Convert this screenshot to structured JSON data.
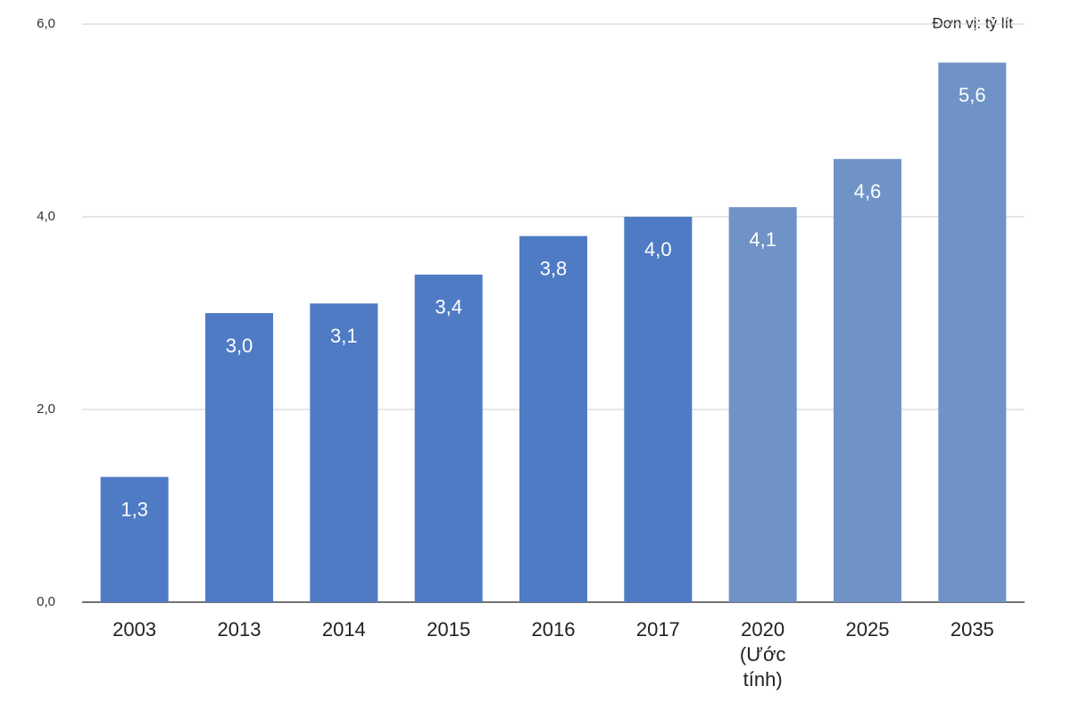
{
  "chart_data": {
    "type": "bar",
    "unit_label": "Đơn vị: tỷ lít",
    "categories": [
      "2003",
      "2013",
      "2014",
      "2015",
      "2016",
      "2017",
      "2020 (Ước tính)",
      "2025",
      "2035"
    ],
    "values": [
      1.3,
      3.0,
      3.1,
      3.4,
      3.8,
      4.0,
      4.1,
      4.6,
      5.6
    ],
    "value_labels": [
      "1,3",
      "3,0",
      "3,1",
      "3,4",
      "3,8",
      "4,0",
      "4,1",
      "4,6",
      "5,6"
    ],
    "colors": [
      "#4f7bc5",
      "#4f7bc5",
      "#4f7bc5",
      "#4f7bc5",
      "#4f7bc5",
      "#4f7bc5",
      "#6f93c6",
      "#6f93c6",
      "#6f93c6"
    ],
    "ylim": [
      0,
      6
    ],
    "yticks": [
      {
        "value": 0,
        "label": "0,0"
      },
      {
        "value": 2,
        "label": "2,0"
      },
      {
        "value": 4,
        "label": "4,0"
      },
      {
        "value": 6,
        "label": "6,0"
      }
    ],
    "grid": true
  }
}
